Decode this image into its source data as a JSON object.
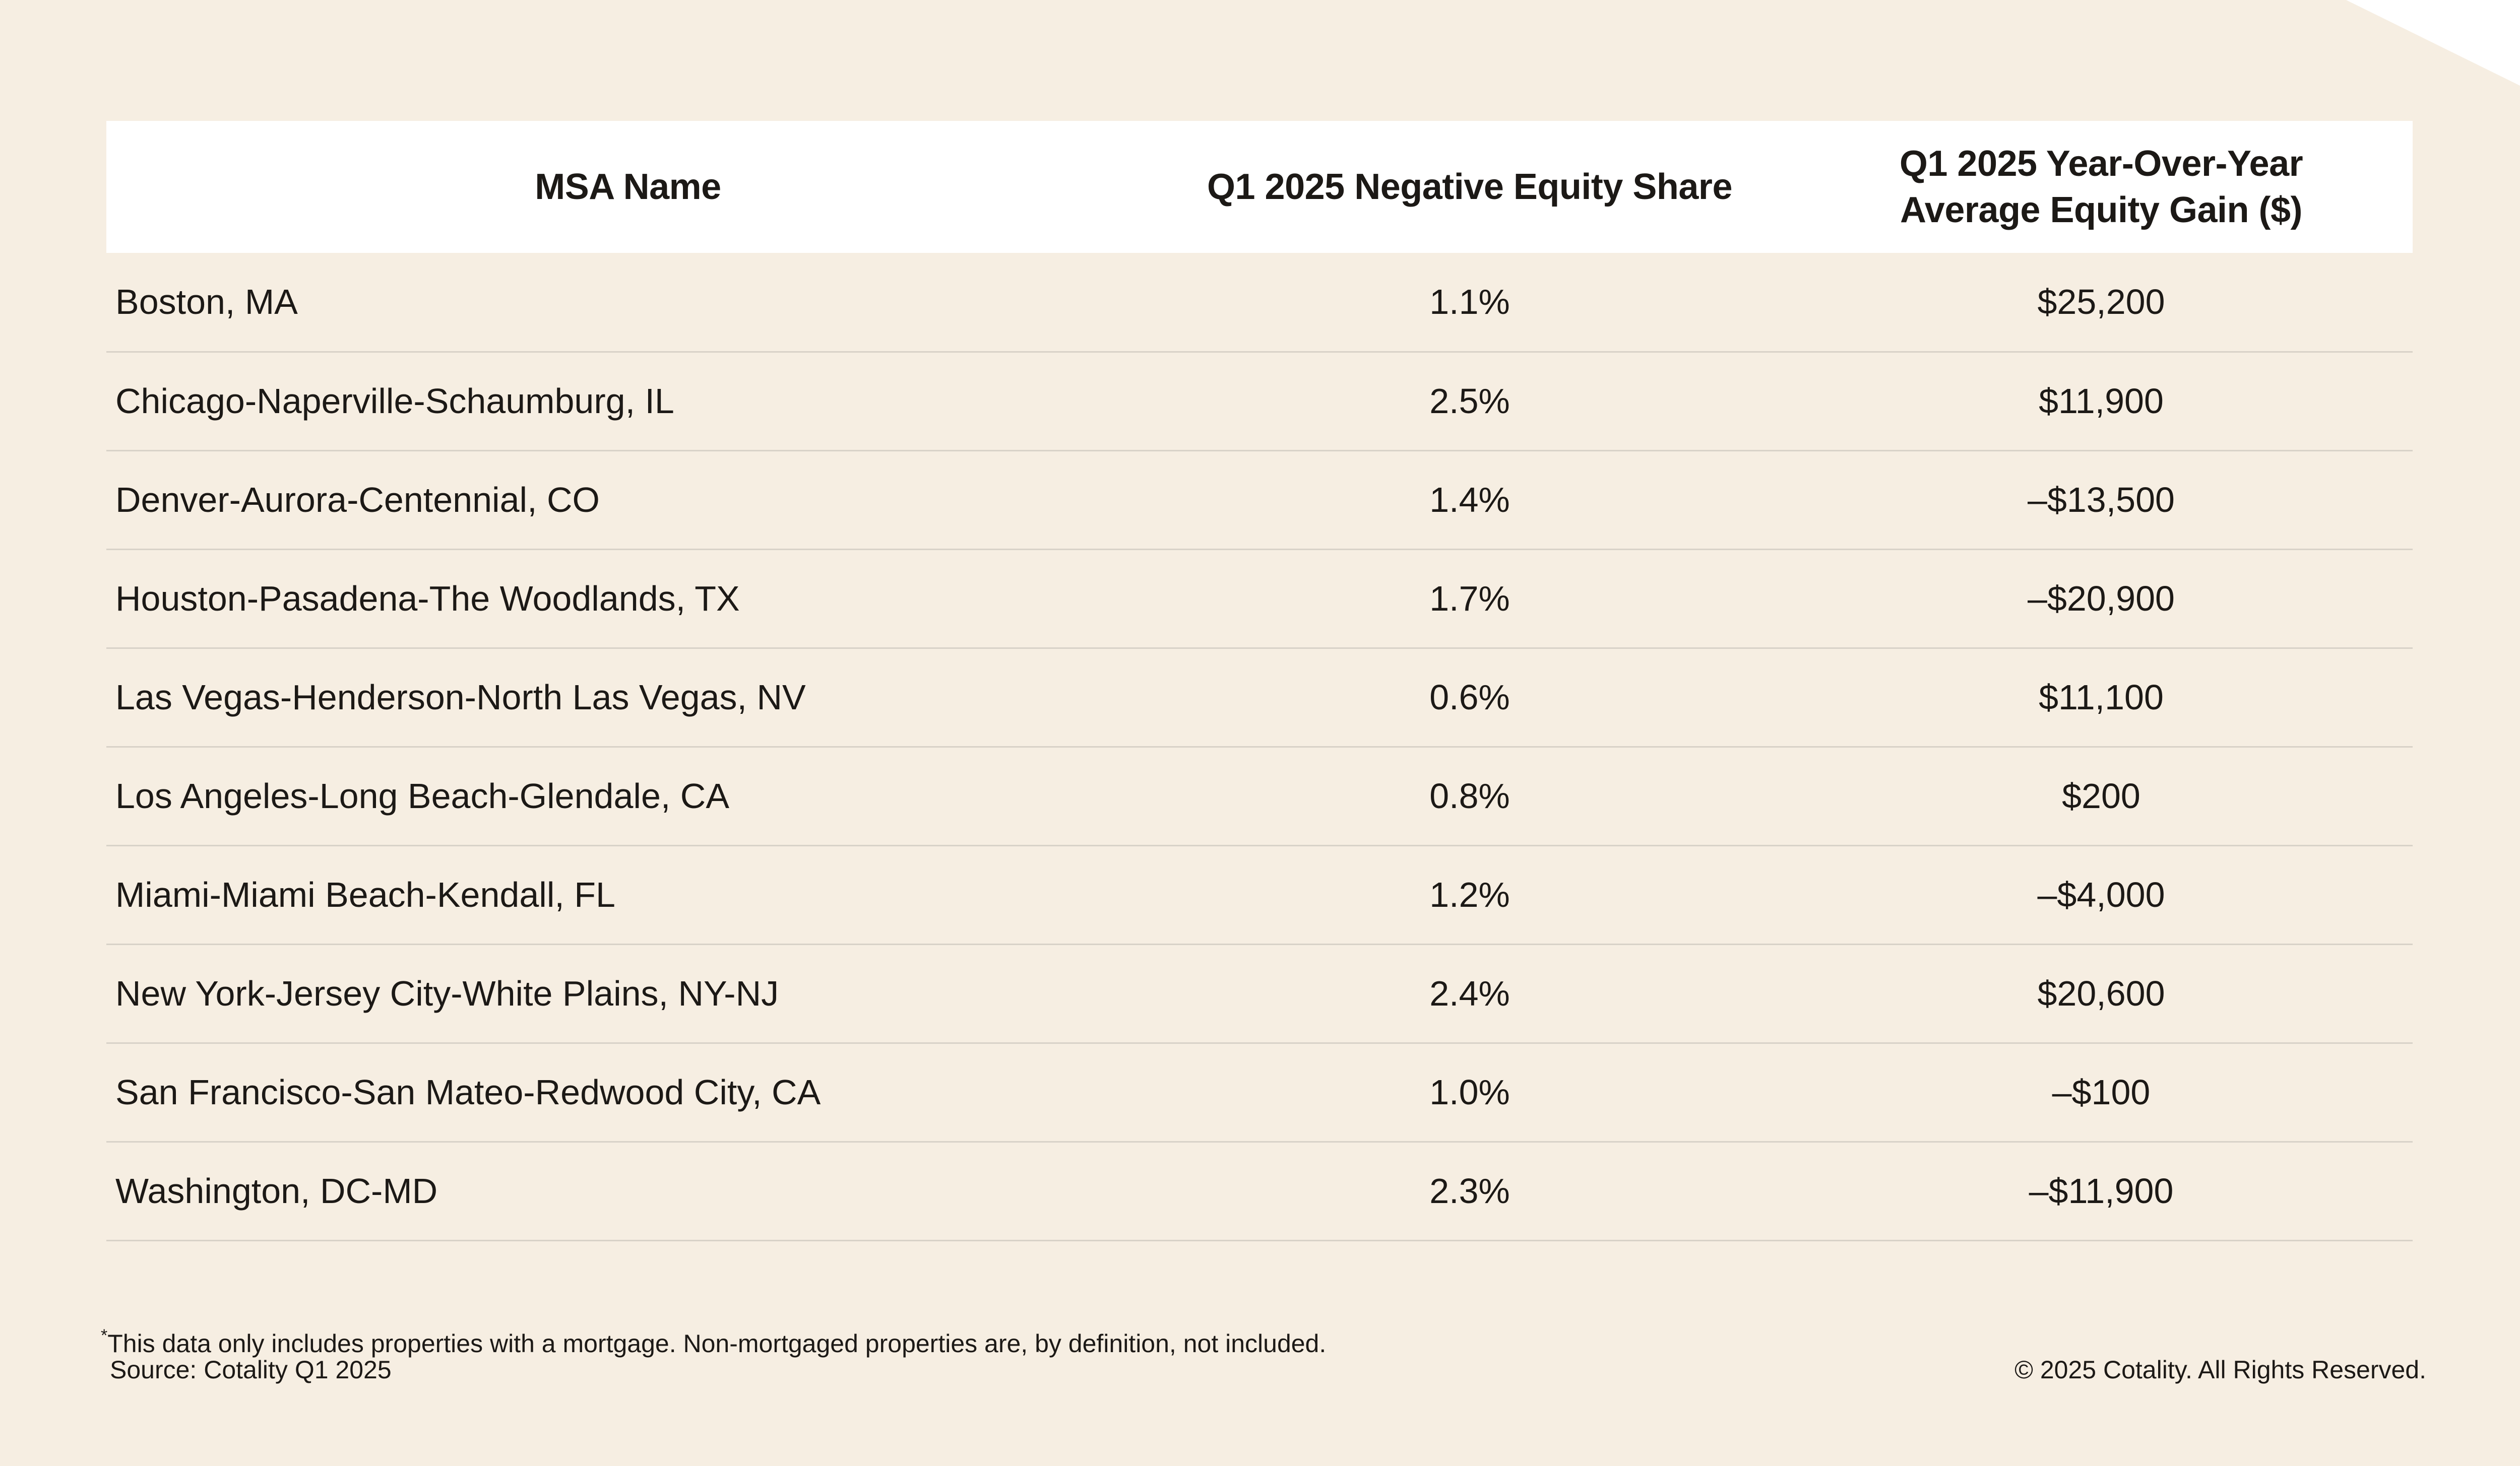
{
  "colors": {
    "background": "#f6eee2",
    "header_background": "#ffffff",
    "text": "#1c1916",
    "row_divider": "#d8d2c8"
  },
  "chart_data": {
    "type": "table",
    "columns": [
      "MSA Name",
      "Q1 2025  Negative Equity Share",
      "Q1 2025 Year-Over-Year Average Equity Gain ($)"
    ],
    "rows": [
      {
        "name": "Boston, MA",
        "share": "1.1%",
        "gain": "$25,200"
      },
      {
        "name": "Chicago-Naperville-Schaumburg, IL",
        "share": "2.5%",
        "gain": "$11,900"
      },
      {
        "name": "Denver-Aurora-Centennial, CO",
        "share": "1.4%",
        "gain": "–$13,500"
      },
      {
        "name": "Houston-Pasadena-The Woodlands, TX",
        "share": "1.7%",
        "gain": "–$20,900"
      },
      {
        "name": "Las Vegas-Henderson-North Las Vegas, NV",
        "share": "0.6%",
        "gain": "$11,100"
      },
      {
        "name": "Los Angeles-Long Beach-Glendale, CA",
        "share": "0.8%",
        "gain": "$200"
      },
      {
        "name": "Miami-Miami Beach-Kendall, FL",
        "share": "1.2%",
        "gain": "–$4,000"
      },
      {
        "name": "New York-Jersey City-White Plains, NY-NJ",
        "share": "2.4%",
        "gain": "$20,600"
      },
      {
        "name": "San Francisco-San Mateo-Redwood City, CA",
        "share": "1.0%",
        "gain": "–$100"
      },
      {
        "name": "Washington, DC-MD",
        "share": "2.3%",
        "gain": "–$11,900"
      }
    ]
  },
  "footer": {
    "footnote_marker": "*",
    "footnote": "This data only includes properties with a mortgage. Non-mortgaged properties are, by definition, not included.",
    "source": "Source: Cotality Q1 2025",
    "copyright": "© 2025 Cotality. All Rights Reserved."
  }
}
